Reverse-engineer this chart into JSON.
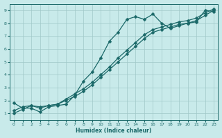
{
  "xlabel": "Humidex (Indice chaleur)",
  "ylabel": "",
  "bg_color": "#c8eaea",
  "grid_color": "#a0c8c8",
  "line_color": "#1a6868",
  "xlim": [
    -0.5,
    23.5
  ],
  "ylim": [
    0.5,
    9.5
  ],
  "xticks": [
    0,
    1,
    2,
    3,
    4,
    5,
    6,
    7,
    8,
    9,
    10,
    11,
    12,
    13,
    14,
    15,
    16,
    17,
    18,
    19,
    20,
    21,
    22,
    23
  ],
  "yticks": [
    1,
    2,
    3,
    4,
    5,
    6,
    7,
    8,
    9
  ],
  "series1_x": [
    0,
    1,
    2,
    3,
    4,
    5,
    6,
    7,
    8,
    9,
    10,
    11,
    12,
    13,
    14,
    15,
    16,
    17,
    18,
    19,
    20,
    21,
    22,
    23
  ],
  "series1_y": [
    1.8,
    1.4,
    1.4,
    1.1,
    1.5,
    1.6,
    1.7,
    2.4,
    3.5,
    4.2,
    5.3,
    6.6,
    7.3,
    8.3,
    8.5,
    8.3,
    8.7,
    8.0,
    7.6,
    7.8,
    8.0,
    8.1,
    9.0,
    8.9
  ],
  "series2_x": [
    0,
    1,
    2,
    3,
    4,
    5,
    6,
    7,
    8,
    9,
    10,
    11,
    12,
    13,
    14,
    15,
    16,
    17,
    18,
    19,
    20,
    21,
    22,
    23
  ],
  "series2_y": [
    1.0,
    1.3,
    1.6,
    1.5,
    1.6,
    1.7,
    2.0,
    2.3,
    2.7,
    3.2,
    3.8,
    4.4,
    5.0,
    5.6,
    6.2,
    6.8,
    7.3,
    7.5,
    7.7,
    7.9,
    8.0,
    8.2,
    8.6,
    9.0
  ],
  "series3_x": [
    0,
    1,
    2,
    3,
    4,
    5,
    6,
    7,
    8,
    9,
    10,
    11,
    12,
    13,
    14,
    15,
    16,
    17,
    18,
    19,
    20,
    21,
    22,
    23
  ],
  "series3_y": [
    1.2,
    1.5,
    1.6,
    1.4,
    1.6,
    1.7,
    2.1,
    2.5,
    2.9,
    3.4,
    4.0,
    4.6,
    5.3,
    5.9,
    6.5,
    7.1,
    7.5,
    7.7,
    7.9,
    8.1,
    8.2,
    8.4,
    8.8,
    9.1
  ],
  "marker_size": 2.5,
  "linewidth": 0.9
}
